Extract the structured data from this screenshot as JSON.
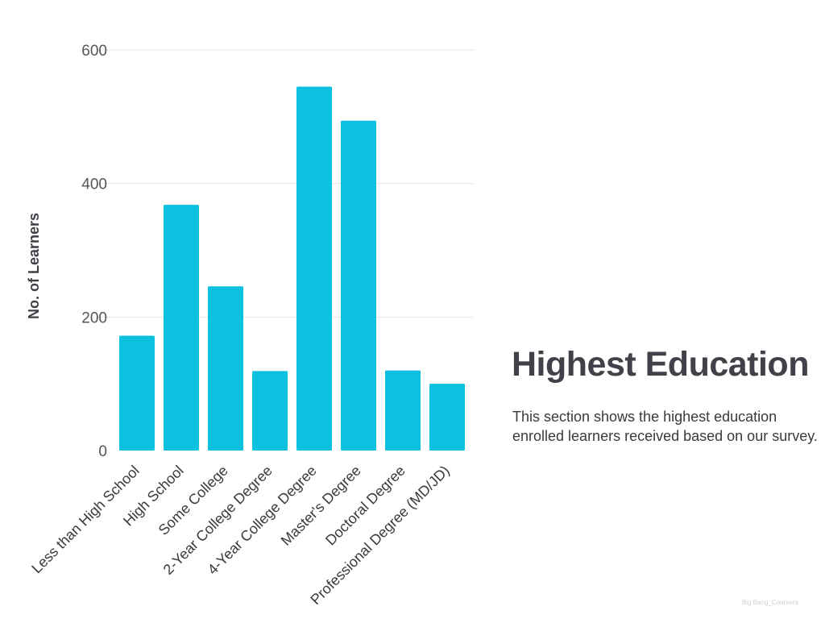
{
  "panel": {
    "title": "Highest Education",
    "description": "This section shows the highest education enrolled learners received based on our survey."
  },
  "watermark": "Big Bang_Coursera",
  "colors": {
    "bar": "#0cc0df",
    "grid": "#e6e6e6",
    "text": "#414149"
  },
  "chart_data": {
    "type": "bar",
    "title": "",
    "xlabel": "",
    "ylabel": "No. of Learners",
    "categories": [
      "Less than High School",
      "High School",
      "Some College",
      "2-Year College Degree",
      "4-Year College Degree",
      "Master's Degree",
      "Doctoral Degree",
      "Professional Degree (MD/JD)"
    ],
    "values": [
      172,
      368,
      246,
      119,
      545,
      494,
      120,
      100
    ],
    "ylim": [
      0,
      600
    ],
    "yticks": [
      0,
      200,
      400,
      600
    ],
    "grid": true,
    "legend": "none"
  }
}
